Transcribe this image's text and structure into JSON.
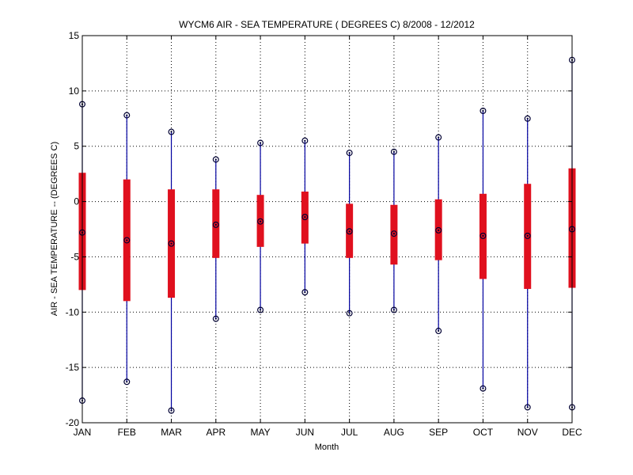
{
  "chart_data": {
    "type": "box",
    "title": "WYCM6  AIR - SEA TEMPERATURE ( DEGREES C) 8/2008 - 12/2012",
    "xlabel": "Month",
    "ylabel": "AIR - SEA TEMPERATURE -- (DEGREES C)",
    "ylim": [
      -20,
      15
    ],
    "yticks": [
      -20,
      -15,
      -10,
      -5,
      0,
      5,
      10,
      15
    ],
    "grid": true,
    "categories": [
      "JAN",
      "FEB",
      "MAR",
      "APR",
      "MAY",
      "JUN",
      "JUL",
      "AUG",
      "SEP",
      "OCT",
      "NOV",
      "DEC"
    ],
    "series": [
      {
        "values": {
          "max": [
            8.8,
            7.8,
            6.3,
            3.8,
            5.3,
            5.5,
            4.4,
            4.5,
            5.8,
            8.2,
            7.5,
            12.8
          ],
          "q3": [
            2.6,
            2.0,
            1.1,
            1.1,
            0.6,
            0.9,
            -0.2,
            -0.3,
            0.2,
            0.7,
            1.6,
            3.0
          ],
          "median": [
            -2.8,
            -3.5,
            -3.8,
            -2.1,
            -1.8,
            -1.4,
            -2.7,
            -2.9,
            -2.6,
            -3.1,
            -3.1,
            -2.5
          ],
          "q1": [
            -8.0,
            -9.0,
            -8.7,
            -5.1,
            -4.1,
            -3.8,
            -5.1,
            -5.7,
            -5.3,
            -7.0,
            -7.9,
            -7.8
          ],
          "min": [
            -18.0,
            -16.3,
            -18.9,
            -10.6,
            -9.8,
            -8.2,
            -10.1,
            -9.8,
            -11.7,
            -16.9,
            -18.6,
            -18.6
          ]
        }
      }
    ],
    "colors": {
      "whisker": "#0000a0",
      "box": "#e0101e",
      "marker": "#000033",
      "grid": "#000000"
    }
  }
}
